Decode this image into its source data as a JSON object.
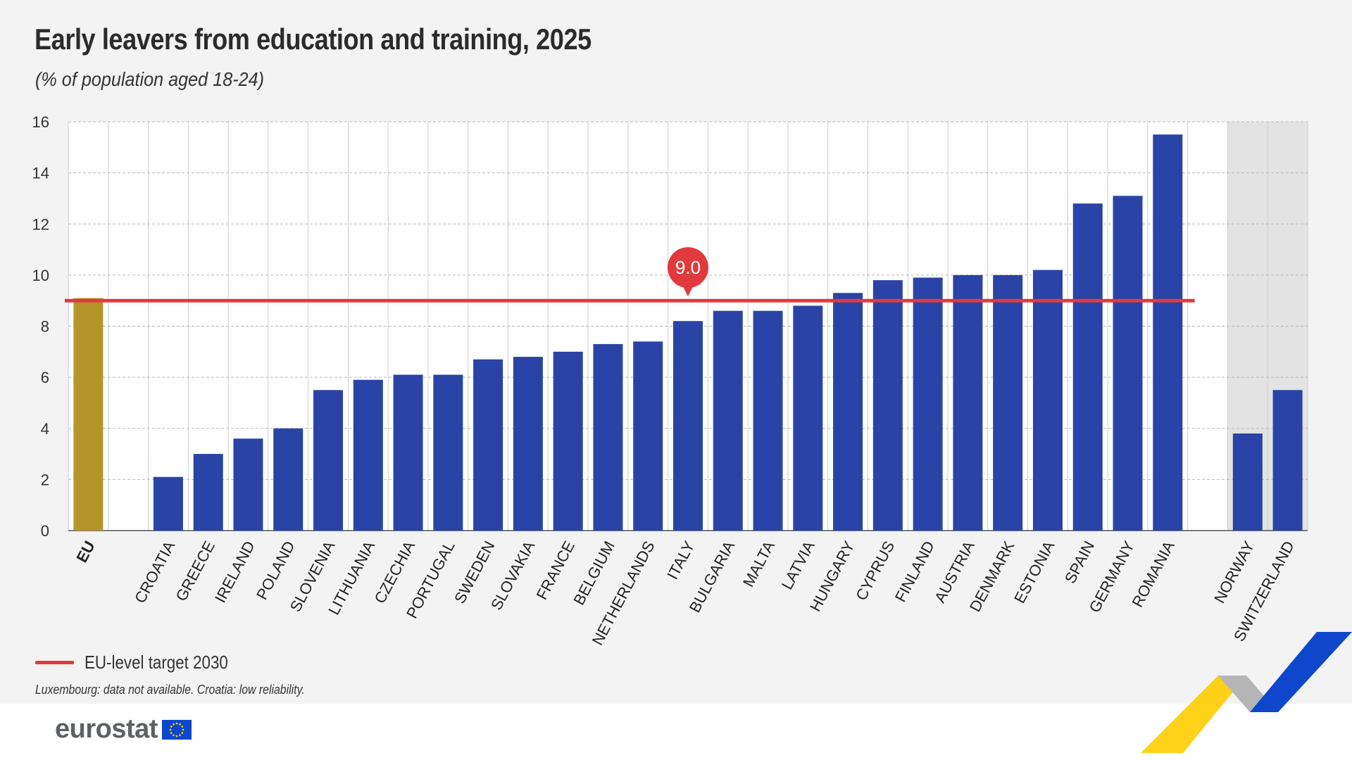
{
  "header": {
    "title": "Early leavers from education and training, 2025",
    "subtitle": "(% of population aged 18-24)"
  },
  "legend": {
    "label": "EU-level target 2030",
    "color": "#e03a3e"
  },
  "footnote": "Luxembourg: data not available. Croatia: low reliability.",
  "logo": {
    "text": "eurostat"
  },
  "colors": {
    "eu_bar": "#b5952a",
    "country_bar": "#2944a6",
    "target_line": "#e03a3e",
    "non_eu_shade": "#e3e3e3"
  },
  "chart_data": {
    "type": "bar",
    "categories": [
      "EU",
      "CROATIA",
      "GREECE",
      "IRELAND",
      "POLAND",
      "SLOVENIA",
      "LITHUANIA",
      "CZECHIA",
      "PORTUGAL",
      "SWEDEN",
      "SLOVAKIA",
      "FRANCE",
      "BELGIUM",
      "NETHERLANDS",
      "ITALY",
      "BULGARIA",
      "MALTA",
      "LATVIA",
      "HUNGARY",
      "CYPRUS",
      "FINLAND",
      "AUSTRIA",
      "DENMARK",
      "ESTONIA",
      "SPAIN",
      "GERMANY",
      "ROMANIA",
      "NORWAY",
      "SWITZERLAND"
    ],
    "values": [
      9.1,
      2.1,
      3.0,
      3.6,
      4.0,
      5.5,
      5.9,
      6.1,
      6.1,
      6.7,
      6.8,
      7.0,
      7.3,
      7.4,
      8.2,
      8.6,
      8.6,
      8.8,
      9.3,
      9.8,
      9.9,
      10.0,
      10.0,
      10.2,
      12.8,
      13.1,
      15.5,
      3.8,
      5.5
    ],
    "groups": [
      "eu",
      "member",
      "member",
      "member",
      "member",
      "member",
      "member",
      "member",
      "member",
      "member",
      "member",
      "member",
      "member",
      "member",
      "member",
      "member",
      "member",
      "member",
      "member",
      "member",
      "member",
      "member",
      "member",
      "member",
      "member",
      "member",
      "member",
      "non-eu",
      "non-eu"
    ],
    "target": {
      "value": 9.0,
      "label": "9.0"
    },
    "ylim": [
      0,
      16
    ],
    "yticks": [
      0,
      2,
      4,
      6,
      8,
      10,
      12,
      14,
      16
    ],
    "grid": true,
    "xlabel": "",
    "ylabel": ""
  }
}
